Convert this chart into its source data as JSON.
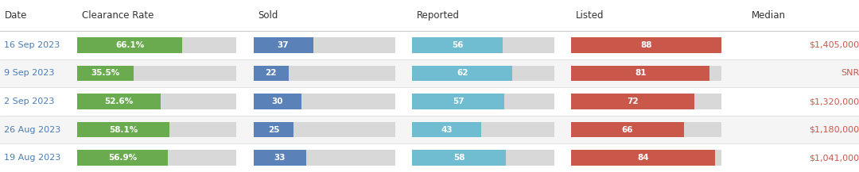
{
  "headers": [
    "Date",
    "Clearance Rate",
    "Sold",
    "Reported",
    "Listed",
    "Median"
  ],
  "rows": [
    {
      "date": "16 Sep 2023",
      "clearance_rate": 66.1,
      "clearance_rate_label": "66.1%",
      "sold": 37,
      "reported": 56,
      "listed": 88,
      "median": "$1,405,000"
    },
    {
      "date": "9 Sep 2023",
      "clearance_rate": 35.5,
      "clearance_rate_label": "35.5%",
      "sold": 22,
      "reported": 62,
      "listed": 81,
      "median": "SNR"
    },
    {
      "date": "2 Sep 2023",
      "clearance_rate": 52.6,
      "clearance_rate_label": "52.6%",
      "sold": 30,
      "reported": 57,
      "listed": 72,
      "median": "$1,320,000"
    },
    {
      "date": "26 Aug 2023",
      "clearance_rate": 58.1,
      "clearance_rate_label": "58.1%",
      "sold": 25,
      "reported": 43,
      "listed": 66,
      "median": "$1,180,000"
    },
    {
      "date": "19 Aug 2023",
      "clearance_rate": 56.9,
      "clearance_rate_label": "56.9%",
      "sold": 33,
      "reported": 58,
      "listed": 84,
      "median": "$1,041,000"
    }
  ],
  "max_sold": 88,
  "max_reported": 88,
  "max_listed": 88,
  "bar_height": 0.55,
  "color_green": "#6aab4f",
  "color_blue": "#5b82b8",
  "color_lightblue": "#70bcd1",
  "color_red": "#c9584a",
  "color_gray_bg": "#d8d8d8",
  "color_row_bg_alt": "#f5f5f5",
  "color_row_bg": "#ffffff",
  "color_header_text": "#333333",
  "color_date_text": "#4a7db5",
  "color_median_text": "#c9584a",
  "color_bar_label": "#ffffff",
  "background_color": "#ffffff",
  "header_line_color": "#cccccc",
  "row_line_color": "#dddddd"
}
